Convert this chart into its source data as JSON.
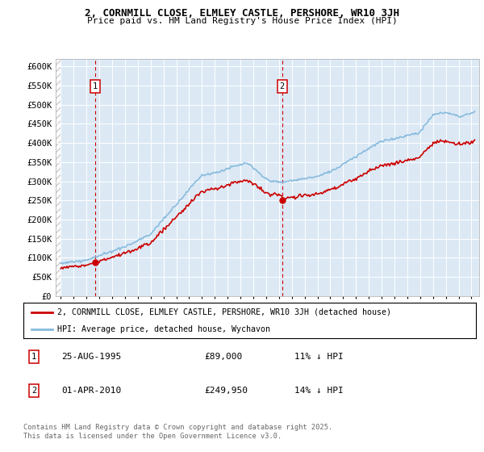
{
  "title1": "2, CORNMILL CLOSE, ELMLEY CASTLE, PERSHORE, WR10 3JH",
  "title2": "Price paid vs. HM Land Registry's House Price Index (HPI)",
  "ylim": [
    0,
    620000
  ],
  "yticks": [
    0,
    50000,
    100000,
    150000,
    200000,
    250000,
    300000,
    350000,
    400000,
    450000,
    500000,
    550000,
    600000
  ],
  "ytick_labels": [
    "£0",
    "£50K",
    "£100K",
    "£150K",
    "£200K",
    "£250K",
    "£300K",
    "£350K",
    "£400K",
    "£450K",
    "£500K",
    "£550K",
    "£600K"
  ],
  "background_color": "#dce9f5",
  "legend1_label": "2, CORNMILL CLOSE, ELMLEY CASTLE, PERSHORE, WR10 3JH (detached house)",
  "legend2_label": "HPI: Average price, detached house, Wychavon",
  "sale1_year": 1995.667,
  "sale1_price": 89000,
  "sale2_year": 2010.25,
  "sale2_price": 249950,
  "line_color_sale": "#cc0000",
  "line_color_hpi": "#88bbdd",
  "footer": "Contains HM Land Registry data © Crown copyright and database right 2025.\nThis data is licensed under the Open Government Licence v3.0."
}
